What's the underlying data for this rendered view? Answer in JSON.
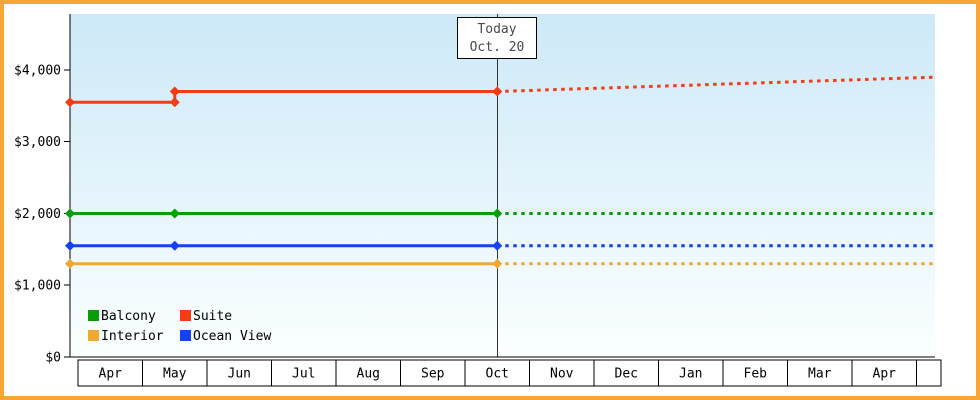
{
  "chart_data": {
    "type": "line",
    "title": "",
    "x_categories": [
      "Apr",
      "May",
      "Jun",
      "Jul",
      "Aug",
      "Sep",
      "Oct",
      "Nov",
      "Dec",
      "Jan",
      "Feb",
      "Mar",
      "Apr"
    ],
    "y_ticks": [
      0,
      1000,
      2000,
      3000,
      4000
    ],
    "y_tick_labels": [
      "$0",
      "$1,000",
      "$2,000",
      "$3,000",
      "$4,000"
    ],
    "ylim": [
      0,
      4780
    ],
    "grid": false,
    "x_axis_style": "month-boxes",
    "today_marker": {
      "line1": "Today",
      "line2": "Oct. 20",
      "x_category": "Oct"
    },
    "series": [
      {
        "name": "Balcony",
        "color": "#089e08",
        "solid": [
          [
            "start",
            2000
          ],
          [
            "May",
            2000
          ],
          [
            "Oct",
            2000
          ]
        ],
        "dotted": [
          [
            "Oct",
            2000
          ],
          [
            "end",
            2000
          ]
        ],
        "markers": [
          [
            "start",
            2000
          ],
          [
            "May",
            2000
          ],
          [
            "Oct",
            2000
          ]
        ]
      },
      {
        "name": "Suite",
        "color": "#f43c12",
        "solid": [
          [
            "start",
            3550
          ],
          [
            "May",
            3550
          ],
          [
            "May",
            3700
          ],
          [
            "Oct",
            3700
          ]
        ],
        "dotted": [
          [
            "Oct",
            3700
          ],
          [
            "end",
            3900
          ]
        ],
        "markers": [
          [
            "start",
            3550
          ],
          [
            "May",
            3550
          ],
          [
            "May",
            3700
          ],
          [
            "Oct",
            3700
          ]
        ]
      },
      {
        "name": "Interior",
        "color": "#f0a830",
        "solid": [
          [
            "start",
            1300
          ],
          [
            "Oct",
            1300
          ]
        ],
        "dotted": [
          [
            "Oct",
            1300
          ],
          [
            "end",
            1300
          ]
        ],
        "markers": [
          [
            "start",
            1300
          ],
          [
            "Oct",
            1300
          ]
        ]
      },
      {
        "name": "Ocean View",
        "color": "#1442f0",
        "solid": [
          [
            "start",
            1550
          ],
          [
            "May",
            1550
          ],
          [
            "Oct",
            1550
          ]
        ],
        "dotted": [
          [
            "Oct",
            1550
          ],
          [
            "end",
            1550
          ]
        ],
        "markers": [
          [
            "start",
            1550
          ],
          [
            "May",
            1550
          ],
          [
            "Oct",
            1550
          ]
        ]
      }
    ],
    "legend": {
      "position": "bottom-left",
      "rows": [
        [
          "Balcony",
          "Suite"
        ],
        [
          "Interior",
          "Ocean View"
        ]
      ]
    }
  },
  "colors": {
    "frame_border": "#f5a636",
    "plot_bg_top": "#cde9f8",
    "plot_bg_bottom": "#fbffff",
    "axis": "#000000",
    "today_line": "#333333",
    "today_text": "#4a4a4a",
    "month_cell_bg": "#ffffff"
  }
}
